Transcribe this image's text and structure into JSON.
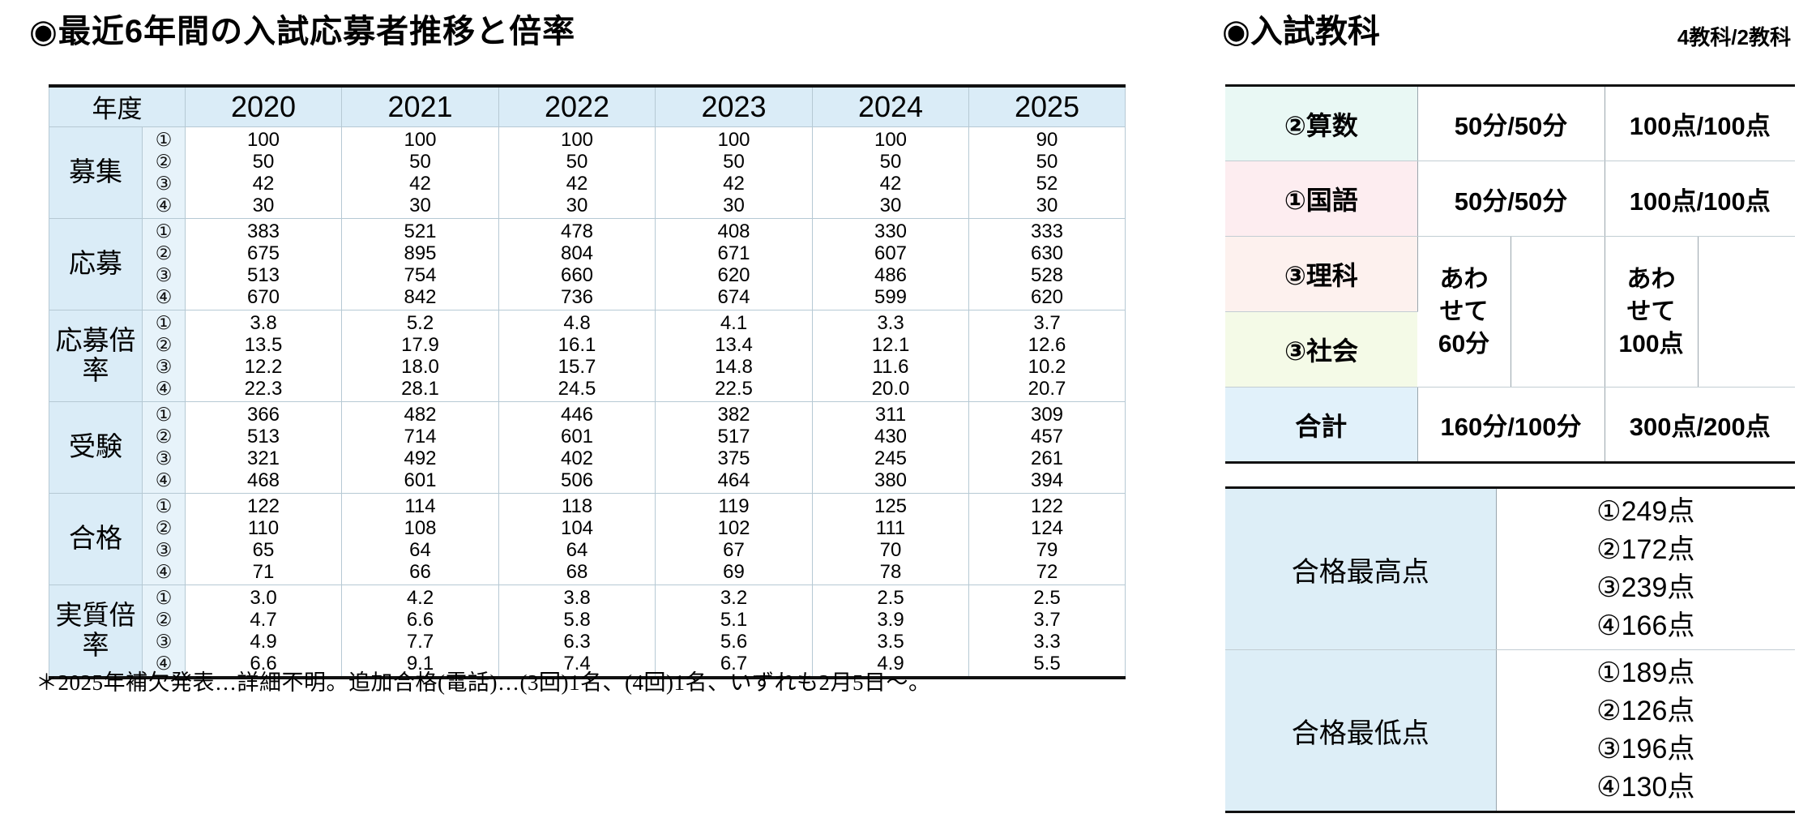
{
  "left": {
    "title": "◉最近6年間の入試応募者推移と倍率",
    "year_header": "年度",
    "years": [
      "2020",
      "2021",
      "2022",
      "2023",
      "2024",
      "2025"
    ],
    "rounds": [
      "①",
      "②",
      "③",
      "④"
    ],
    "groups": [
      {
        "label": "募集",
        "values": [
          [
            "100",
            "50",
            "42",
            "30"
          ],
          [
            "100",
            "50",
            "42",
            "30"
          ],
          [
            "100",
            "50",
            "42",
            "30"
          ],
          [
            "100",
            "50",
            "42",
            "30"
          ],
          [
            "100",
            "50",
            "42",
            "30"
          ],
          [
            "90",
            "50",
            "52",
            "30"
          ]
        ]
      },
      {
        "label": "応募",
        "values": [
          [
            "383",
            "675",
            "513",
            "670"
          ],
          [
            "521",
            "895",
            "754",
            "842"
          ],
          [
            "478",
            "804",
            "660",
            "736"
          ],
          [
            "408",
            "671",
            "620",
            "674"
          ],
          [
            "330",
            "607",
            "486",
            "599"
          ],
          [
            "333",
            "630",
            "528",
            "620"
          ]
        ]
      },
      {
        "label": "応募倍率",
        "values": [
          [
            "3.8",
            "13.5",
            "12.2",
            "22.3"
          ],
          [
            "5.2",
            "17.9",
            "18.0",
            "28.1"
          ],
          [
            "4.8",
            "16.1",
            "15.7",
            "24.5"
          ],
          [
            "4.1",
            "13.4",
            "14.8",
            "22.5"
          ],
          [
            "3.3",
            "12.1",
            "11.6",
            "20.0"
          ],
          [
            "3.7",
            "12.6",
            "10.2",
            "20.7"
          ]
        ]
      },
      {
        "label": "受験",
        "values": [
          [
            "366",
            "513",
            "321",
            "468"
          ],
          [
            "482",
            "714",
            "492",
            "601"
          ],
          [
            "446",
            "601",
            "402",
            "506"
          ],
          [
            "382",
            "517",
            "375",
            "464"
          ],
          [
            "311",
            "430",
            "245",
            "380"
          ],
          [
            "309",
            "457",
            "261",
            "394"
          ]
        ]
      },
      {
        "label": "合格",
        "values": [
          [
            "122",
            "110",
            "65",
            "71"
          ],
          [
            "114",
            "108",
            "64",
            "66"
          ],
          [
            "118",
            "104",
            "64",
            "68"
          ],
          [
            "119",
            "102",
            "67",
            "69"
          ],
          [
            "125",
            "111",
            "70",
            "78"
          ],
          [
            "122",
            "124",
            "79",
            "72"
          ]
        ]
      },
      {
        "label": "実質倍率",
        "values": [
          [
            "3.0",
            "4.7",
            "4.9",
            "6.6"
          ],
          [
            "4.2",
            "6.6",
            "7.7",
            "9.1"
          ],
          [
            "3.8",
            "5.8",
            "6.3",
            "7.4"
          ],
          [
            "3.2",
            "5.1",
            "5.6",
            "6.7"
          ],
          [
            "2.5",
            "3.9",
            "3.5",
            "4.9"
          ],
          [
            "2.5",
            "3.7",
            "3.3",
            "5.5"
          ]
        ]
      }
    ],
    "footnote": "＊2025年補欠発表…詳細不明。追加合格(電話)…(3回)1名、(4回)1名、いずれも2月5日〜。"
  },
  "right": {
    "title": "◉入試教科",
    "format_note": "4教科/2教科",
    "subjects": {
      "rows": [
        {
          "label": "②算数",
          "time": "50分/50分",
          "points": "100点/100点"
        },
        {
          "label": "①国語",
          "time": "50分/50分",
          "points": "100点/100点"
        },
        {
          "label": "③理科"
        },
        {
          "label": "③社会"
        },
        {
          "label": "合計",
          "time": "160分/100分",
          "points": "300点/200点"
        }
      ],
      "combined_time": "あわ\nせて\n60分",
      "combined_points": "あわ\nせて\n100点"
    },
    "scores": {
      "rows": [
        {
          "label": "合格最高点",
          "values": [
            "①249点",
            "②172点",
            "③239点",
            "④166点"
          ]
        },
        {
          "label": "合格最低点",
          "values": [
            "①189点",
            "②126点",
            "③196点",
            "④130点"
          ]
        }
      ]
    }
  },
  "colors": {
    "table_header_blue": "#daecf7",
    "math_row_mint": "#e9f8f4",
    "kokugo_row_pink": "#fdedf0",
    "rika_row_pink": "#fdf1ee",
    "shakai_row_green": "#f4fae7",
    "total_row_blue": "#e1f1fa",
    "score_label_blue": "#ddeef7"
  }
}
